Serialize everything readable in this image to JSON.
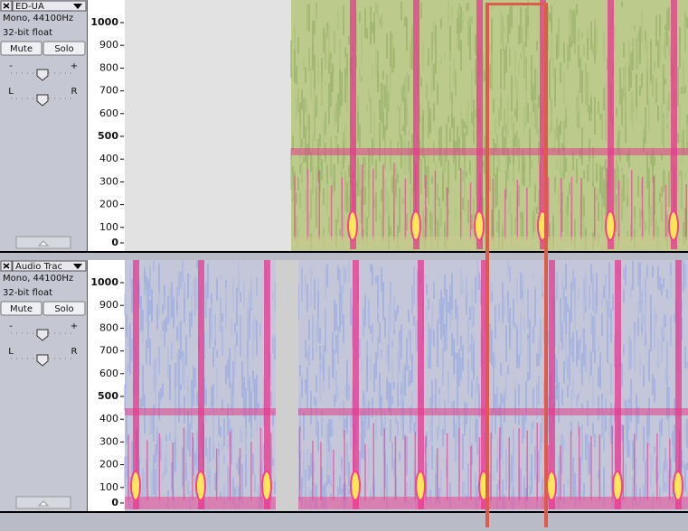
{
  "tracks": [
    {
      "name": "ED-UA",
      "info": [
        "Mono, 44100Hz",
        "32-bit float"
      ],
      "buttons": [
        "Mute",
        "Solo"
      ],
      "gain": [
        "-",
        "+"
      ],
      "pan": [
        "L",
        "R"
      ],
      "ticks": [
        1000,
        900,
        800,
        700,
        600,
        500,
        400,
        300,
        200,
        100,
        0
      ]
    },
    {
      "name": "Audio Trac",
      "info": [
        "Mono, 44100Hz",
        "32-bit float"
      ],
      "buttons": [
        "Mute",
        "Solo"
      ],
      "gain": [
        "-",
        "+"
      ],
      "pan": [
        "L",
        "R"
      ],
      "ticks": [
        1000,
        900,
        800,
        700,
        600,
        500,
        400,
        300,
        200,
        100,
        0
      ]
    }
  ]
}
